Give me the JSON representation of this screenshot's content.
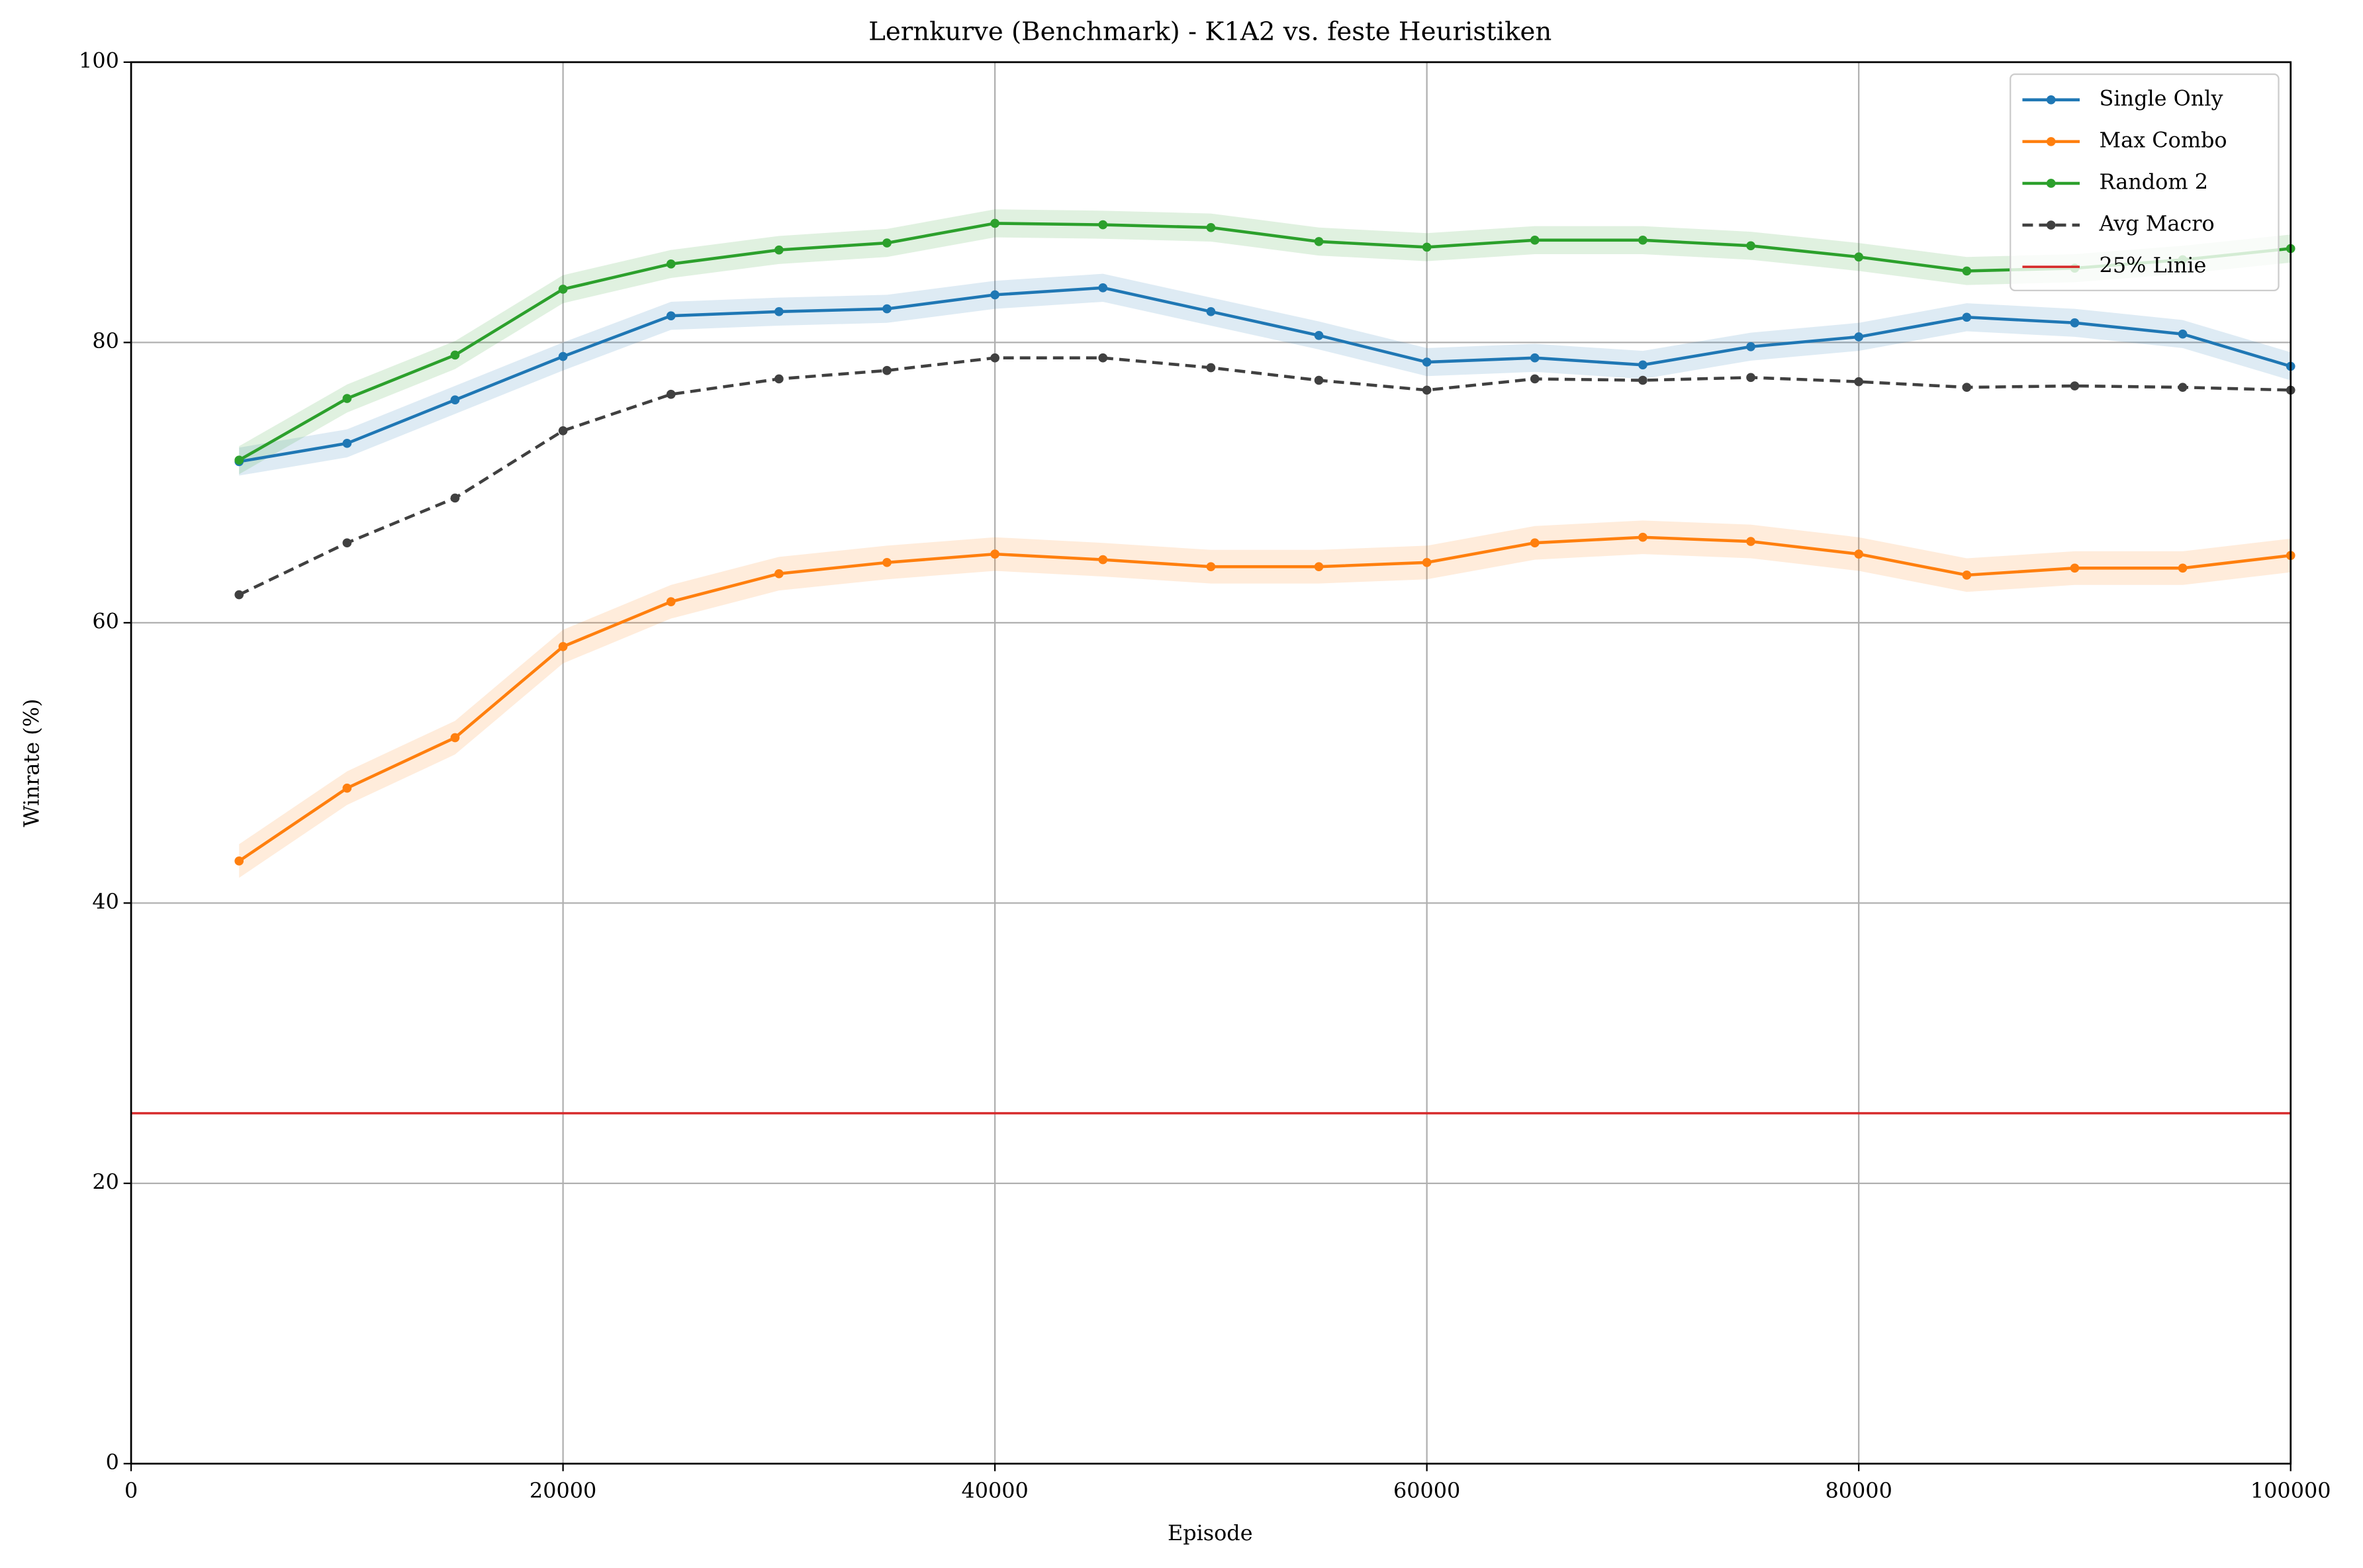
{
  "chart_data": {
    "type": "line",
    "title": "Lernkurve (Benchmark) - K1A2 vs. feste Heuristiken",
    "xlabel": "Episode",
    "ylabel": "Winrate (%)",
    "x": [
      5000,
      10000,
      15000,
      20000,
      25000,
      30000,
      35000,
      40000,
      45000,
      50000,
      55000,
      60000,
      65000,
      70000,
      75000,
      80000,
      85000,
      90000,
      95000,
      100000
    ],
    "series": [
      {
        "name": "Single Only",
        "color": "#1f77b4",
        "band": 1.0,
        "values": [
          71.5,
          72.8,
          75.9,
          79.0,
          81.9,
          82.2,
          82.4,
          83.4,
          83.9,
          82.2,
          80.5,
          78.6,
          78.9,
          78.4,
          79.7,
          80.4,
          81.8,
          81.4,
          80.6,
          78.3
        ]
      },
      {
        "name": "Max Combo",
        "color": "#ff7f0e",
        "band": 1.2,
        "values": [
          43.0,
          48.2,
          51.8,
          58.3,
          61.5,
          63.5,
          64.3,
          64.9,
          64.5,
          64.0,
          64.0,
          64.3,
          65.7,
          66.1,
          65.8,
          64.9,
          63.4,
          63.9,
          63.9,
          64.8
        ]
      },
      {
        "name": "Random 2",
        "color": "#2ca02c",
        "band": 1.0,
        "values": [
          71.6,
          76.0,
          79.1,
          83.8,
          85.6,
          86.6,
          87.1,
          88.5,
          88.4,
          88.2,
          87.2,
          86.8,
          87.3,
          87.3,
          86.9,
          86.1,
          85.1,
          85.3,
          85.9,
          86.7
        ]
      },
      {
        "name": "Avg Macro",
        "color": "#404040",
        "dashed": true,
        "values": [
          62.0,
          65.7,
          68.9,
          73.7,
          76.3,
          77.4,
          78.0,
          78.9,
          78.9,
          78.2,
          77.3,
          76.6,
          77.4,
          77.3,
          77.5,
          77.2,
          76.8,
          76.9,
          76.8,
          76.6
        ]
      }
    ],
    "hlines": [
      {
        "name": "25% Linie",
        "value": 25,
        "color": "#d62728"
      }
    ],
    "xlim": [
      0,
      100000
    ],
    "xticks": [
      0,
      20000,
      40000,
      60000,
      80000,
      100000
    ],
    "ylim": [
      0,
      100
    ],
    "yticks": [
      0,
      20,
      40,
      60,
      80,
      100
    ],
    "grid": true,
    "legend": "upper right"
  }
}
